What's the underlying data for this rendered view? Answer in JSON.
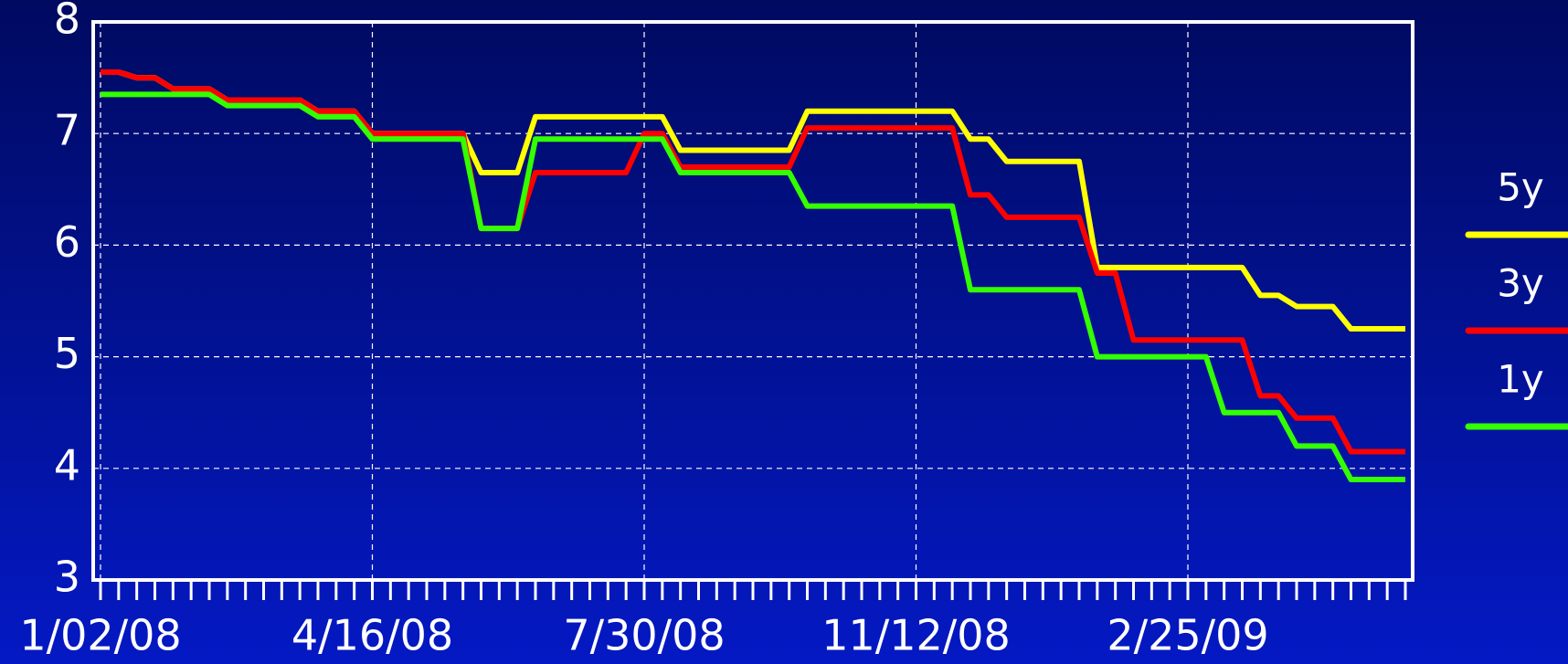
{
  "chart_data": {
    "type": "line",
    "categories": [
      "1/02/08",
      null,
      null,
      null,
      null,
      null,
      null,
      null,
      null,
      null,
      null,
      null,
      null,
      null,
      null,
      "4/16/08",
      null,
      null,
      null,
      null,
      null,
      null,
      null,
      null,
      null,
      null,
      null,
      null,
      null,
      null,
      "7/30/08",
      null,
      null,
      null,
      null,
      null,
      null,
      null,
      null,
      null,
      null,
      null,
      null,
      null,
      null,
      "11/12/08",
      null,
      null,
      null,
      null,
      null,
      null,
      null,
      null,
      null,
      null,
      null,
      null,
      null,
      null,
      "2/25/09",
      null,
      null,
      null,
      null,
      null,
      null,
      null,
      null,
      null,
      null,
      null,
      null
    ],
    "series": [
      {
        "name": "5y",
        "color": "#ffff00",
        "values": [
          7.55,
          7.55,
          7.5,
          7.5,
          7.4,
          7.4,
          7.4,
          7.3,
          7.3,
          7.3,
          7.3,
          7.3,
          7.2,
          7.2,
          7.2,
          7.0,
          7.0,
          7.0,
          7.0,
          7.0,
          7.0,
          6.65,
          6.65,
          6.65,
          7.15,
          7.15,
          7.15,
          7.15,
          7.15,
          7.15,
          7.15,
          7.15,
          6.85,
          6.85,
          6.85,
          6.85,
          6.85,
          6.85,
          6.85,
          7.2,
          7.2,
          7.2,
          7.2,
          7.2,
          7.2,
          7.2,
          7.2,
          7.2,
          6.95,
          6.95,
          6.75,
          6.75,
          6.75,
          6.75,
          6.75,
          5.8,
          5.8,
          5.8,
          5.8,
          5.8,
          5.8,
          5.8,
          5.8,
          5.8,
          5.55,
          5.55,
          5.45,
          5.45,
          5.45,
          5.25,
          5.25,
          5.25,
          5.25
        ]
      },
      {
        "name": "3y",
        "color": "#ff0000",
        "values": [
          7.55,
          7.55,
          7.5,
          7.5,
          7.4,
          7.4,
          7.4,
          7.3,
          7.3,
          7.3,
          7.3,
          7.3,
          7.2,
          7.2,
          7.2,
          7.0,
          7.0,
          7.0,
          7.0,
          7.0,
          7.0,
          6.15,
          6.15,
          6.15,
          6.65,
          6.65,
          6.65,
          6.65,
          6.65,
          6.65,
          7.0,
          7.0,
          6.7,
          6.7,
          6.7,
          6.7,
          6.7,
          6.7,
          6.7,
          7.05,
          7.05,
          7.05,
          7.05,
          7.05,
          7.05,
          7.05,
          7.05,
          7.05,
          6.45,
          6.45,
          6.25,
          6.25,
          6.25,
          6.25,
          6.25,
          5.75,
          5.75,
          5.15,
          5.15,
          5.15,
          5.15,
          5.15,
          5.15,
          5.15,
          4.65,
          4.65,
          4.45,
          4.45,
          4.45,
          4.15,
          4.15,
          4.15,
          4.15
        ]
      },
      {
        "name": "1y",
        "color": "#33ff00",
        "values": [
          7.35,
          7.35,
          7.35,
          7.35,
          7.35,
          7.35,
          7.35,
          7.25,
          7.25,
          7.25,
          7.25,
          7.25,
          7.15,
          7.15,
          7.15,
          6.95,
          6.95,
          6.95,
          6.95,
          6.95,
          6.95,
          6.15,
          6.15,
          6.15,
          6.95,
          6.95,
          6.95,
          6.95,
          6.95,
          6.95,
          6.95,
          6.95,
          6.65,
          6.65,
          6.65,
          6.65,
          6.65,
          6.65,
          6.65,
          6.35,
          6.35,
          6.35,
          6.35,
          6.35,
          6.35,
          6.35,
          6.35,
          6.35,
          5.6,
          5.6,
          5.6,
          5.6,
          5.6,
          5.6,
          5.6,
          5.0,
          5.0,
          5.0,
          5.0,
          5.0,
          5.0,
          5.0,
          4.5,
          4.5,
          4.5,
          4.5,
          4.2,
          4.2,
          4.2,
          3.9,
          3.9,
          3.9,
          3.9
        ]
      }
    ],
    "ylim": [
      3,
      8
    ],
    "yticks": [
      3,
      4,
      5,
      6,
      7,
      8
    ],
    "grid": true,
    "legend": "right"
  }
}
